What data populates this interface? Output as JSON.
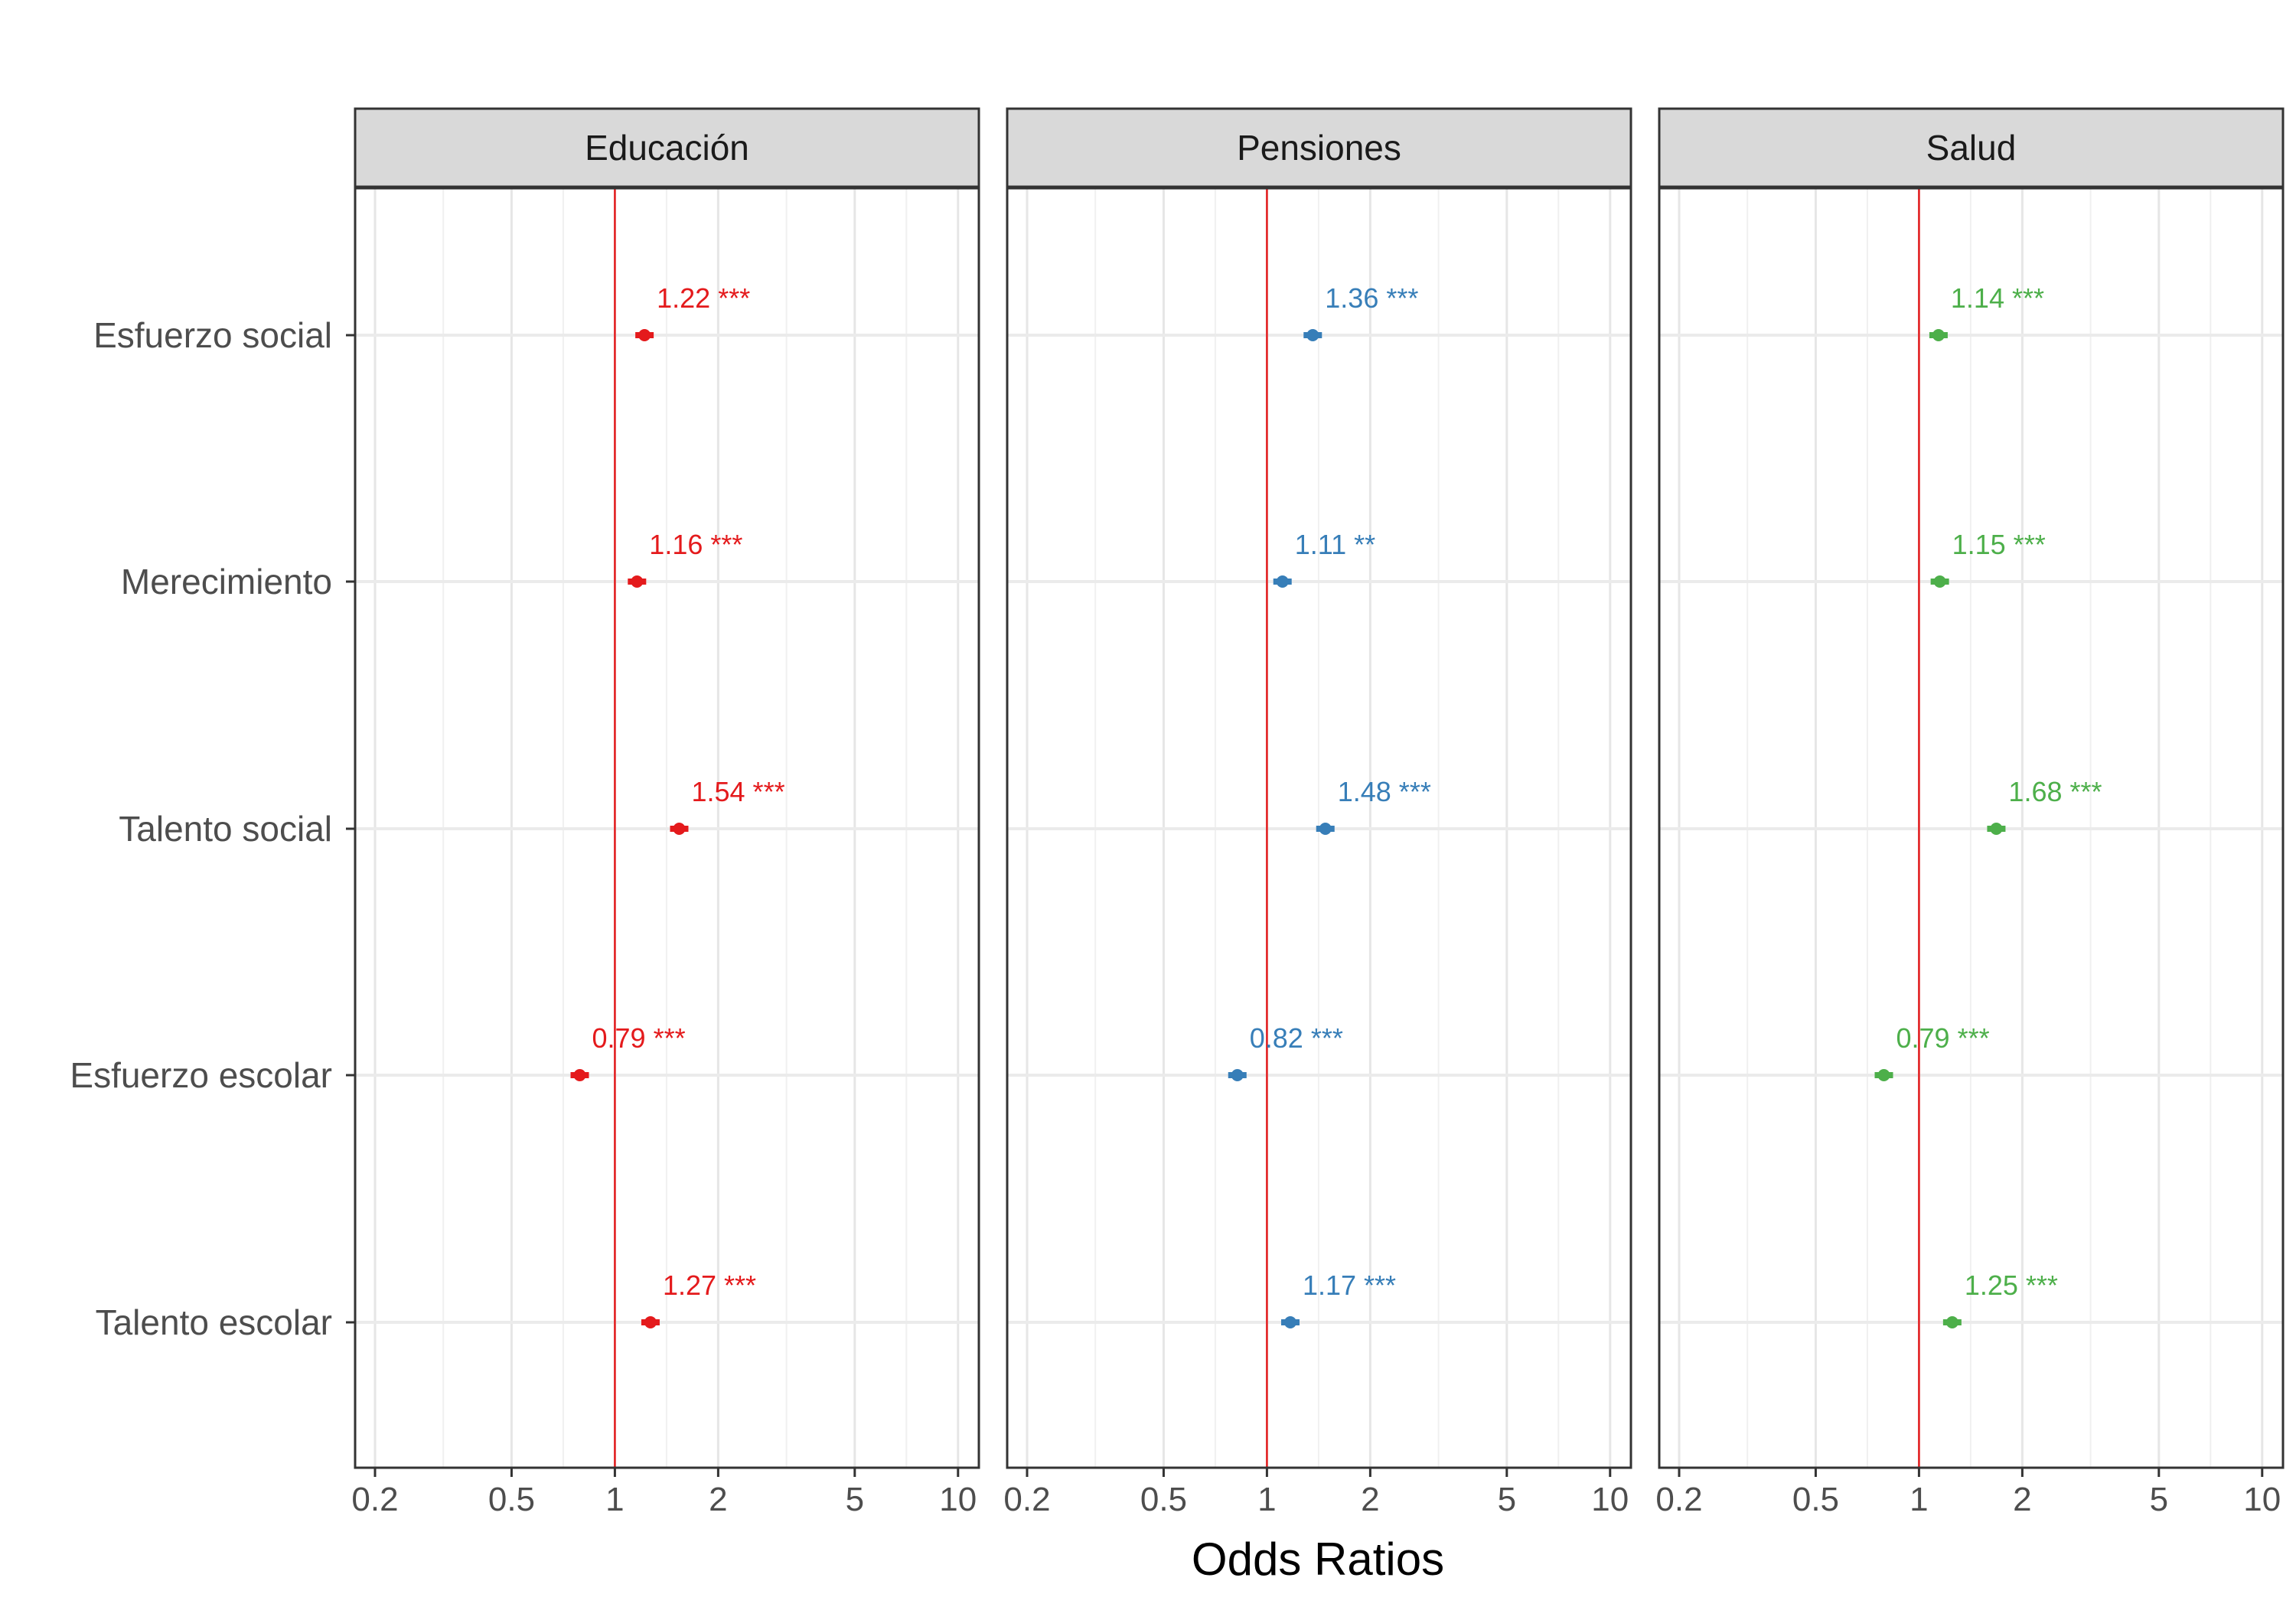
{
  "chart_data": {
    "type": "scatter",
    "subtype": "forest-plot",
    "xlabel": "Odds Ratios",
    "x_scale": "log",
    "xlim": [
      0.175,
      11.5
    ],
    "x_ticks": [
      0.2,
      0.5,
      1,
      2,
      5,
      10
    ],
    "x_tick_labels": [
      "0.2",
      "0.5",
      "1",
      "2",
      "5",
      "10"
    ],
    "reference_line": 1,
    "reference_line_color": "#e41a1c",
    "grid": true,
    "legend": "none",
    "categories": [
      "Esfuerzo social",
      "Merecimiento",
      "Talento social",
      "Esfuerzo escolar",
      "Talento escolar"
    ],
    "panels": [
      {
        "name": "Educación",
        "color": "#e41a1c",
        "values": [
          1.22,
          1.16,
          1.54,
          0.79,
          1.27
        ],
        "labels": [
          "1.22 ***",
          "1.16 ***",
          "1.54 ***",
          "0.79 ***",
          "1.27 ***"
        ]
      },
      {
        "name": "Pensiones",
        "color": "#377eb8",
        "values": [
          1.36,
          1.11,
          1.48,
          0.82,
          1.17
        ],
        "labels": [
          "1.36 ***",
          "1.11 **",
          "1.48 ***",
          "0.82 ***",
          "1.17 ***"
        ]
      },
      {
        "name": "Salud",
        "color": "#4daf4a",
        "values": [
          1.14,
          1.15,
          1.68,
          0.79,
          1.25
        ],
        "labels": [
          "1.14 ***",
          "1.15 ***",
          "1.68 ***",
          "0.79 ***",
          "1.25 ***"
        ]
      }
    ]
  }
}
